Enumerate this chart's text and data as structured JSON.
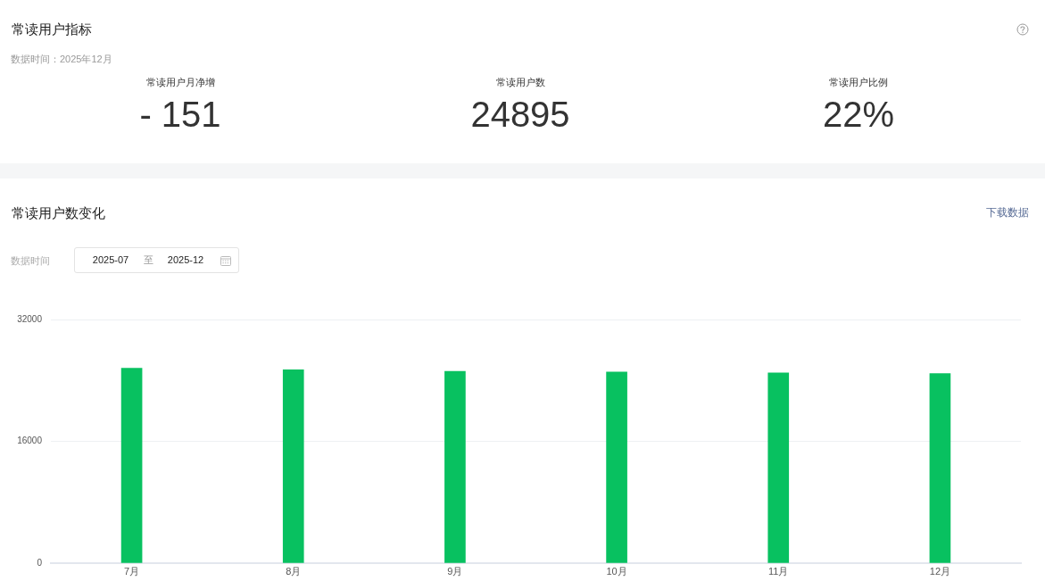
{
  "chart_data": [
    {
      "type": "other",
      "title": "常读用户指标",
      "subtitle": "数据时间：2025年12月",
      "categories": [
        "常读用户月净增",
        "常读用户数",
        "常读用户比例"
      ],
      "value_labels": [
        "- 151",
        "24895",
        "22%"
      ]
    },
    {
      "type": "bar",
      "title": "常读用户数变化",
      "annotations": [
        "下载数据",
        "数据时间",
        "2025-07",
        "至",
        "2025-12"
      ],
      "categories": [
        "7月",
        "8月",
        "9月",
        "10月",
        "11月",
        "12月"
      ],
      "values": [
        25600,
        25400,
        25200,
        25100,
        25000,
        24900
      ],
      "color": "#08c160",
      "ylim": [
        0,
        32000
      ],
      "yticks": [
        0,
        16000,
        32000
      ],
      "grid": "y"
    }
  ]
}
